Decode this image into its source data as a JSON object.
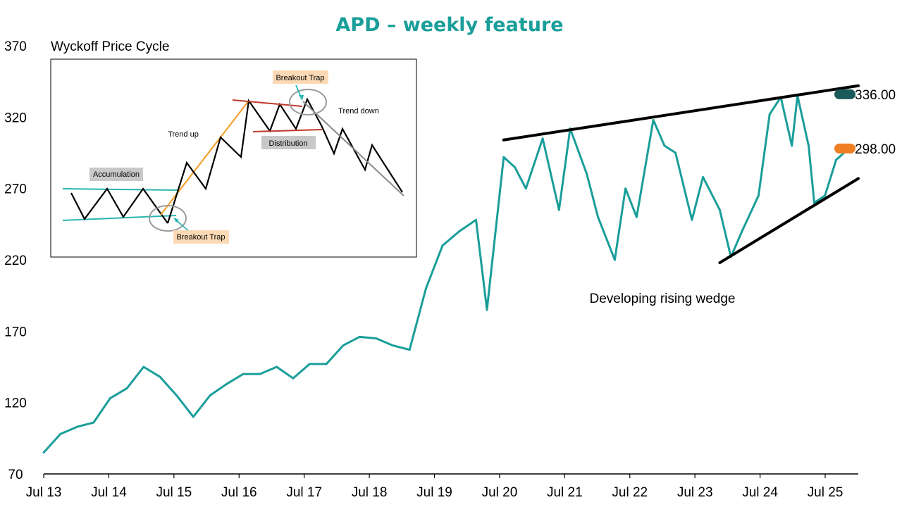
{
  "chart_data": {
    "type": "line",
    "title": "APD – weekly feature",
    "xlabel": "",
    "ylabel": "",
    "ylim": [
      70,
      370
    ],
    "yticks": [
      70,
      120,
      170,
      220,
      270,
      320,
      370
    ],
    "xticks": [
      "Jul 13",
      "Jul 14",
      "Jul 15",
      "Jul 16",
      "Jul 17",
      "Jul 18",
      "Jul 19",
      "Jul 20",
      "Jul 21",
      "Jul 22",
      "Jul 23",
      "Jul 24",
      "Jul 25"
    ],
    "xlim": [
      "2013-07-01",
      "2025-10-01"
    ],
    "grid": false,
    "series": [
      {
        "color": "#1a9e9a",
        "x": [
          "2013-07",
          "2013-10",
          "2014-01",
          "2014-04",
          "2014-07",
          "2014-10",
          "2015-01",
          "2015-04",
          "2015-07",
          "2015-10",
          "2016-01",
          "2016-04",
          "2016-07",
          "2016-10",
          "2017-01",
          "2017-04",
          "2017-07",
          "2017-10",
          "2018-01",
          "2018-04",
          "2018-07",
          "2018-10",
          "2019-01",
          "2019-04",
          "2019-07",
          "2019-10",
          "2020-01",
          "2020-03",
          "2020-06",
          "2020-08",
          "2020-10",
          "2021-01",
          "2021-04",
          "2021-06",
          "2021-09",
          "2021-11",
          "2022-02",
          "2022-04",
          "2022-06",
          "2022-09",
          "2022-11",
          "2023-01",
          "2023-04",
          "2023-06",
          "2023-09",
          "2023-11",
          "2024-01",
          "2024-04",
          "2024-06",
          "2024-08",
          "2024-10",
          "2024-11",
          "2025-01",
          "2025-02",
          "2025-04",
          "2025-06",
          "2025-08"
        ],
        "values": [
          85,
          98,
          103,
          106,
          123,
          130,
          145,
          138,
          125,
          110,
          125,
          133,
          140,
          140,
          145,
          137,
          147,
          147,
          160,
          166,
          165,
          160,
          157,
          200,
          230,
          240,
          248,
          185,
          292,
          285,
          270,
          305,
          255,
          312,
          280,
          250,
          220,
          270,
          250,
          318,
          300,
          295,
          248,
          278,
          255,
          222,
          240,
          265,
          322,
          334,
          300,
          335,
          300,
          260,
          265,
          290,
          297
        ]
      }
    ],
    "callouts": [
      {
        "value": 336.0,
        "label": "336.00",
        "color": "#1b5a5a"
      },
      {
        "value": 298.0,
        "label": "298.00",
        "color": "#f07f23"
      }
    ],
    "trendlines": [
      {
        "from": [
          "2020-06",
          304
        ],
        "to": [
          "2025-10",
          342
        ],
        "color": "#000000"
      },
      {
        "from": [
          "2023-09",
          218
        ],
        "to": [
          "2025-10",
          277
        ],
        "color": "#000000"
      }
    ],
    "annotations": [
      {
        "text": "Developing rising wedge"
      }
    ]
  },
  "inset": {
    "title": "Wyckoff Price Cycle",
    "labels": {
      "accumulation": "Accumulation",
      "breakout_trap_bottom": "Breakout Trap",
      "trend_up": "Trend up",
      "distribution": "Distribution",
      "breakout_trap_top": "Breakout Trap",
      "trend_down": "Trend down"
    }
  }
}
